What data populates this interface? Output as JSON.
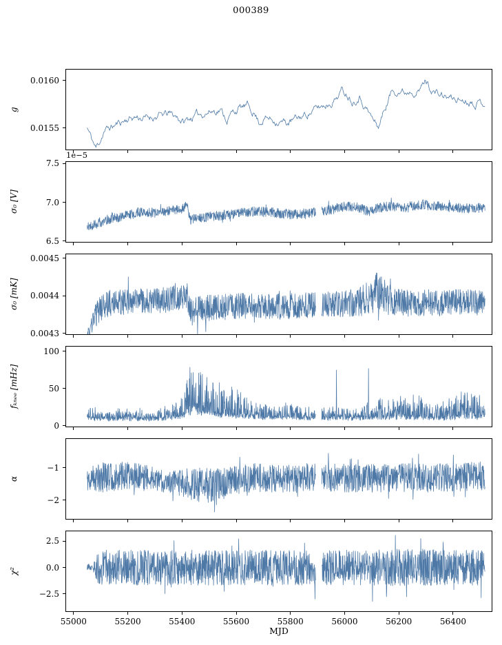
{
  "chart_data": {
    "type": "line",
    "title": "000389",
    "xlabel": "MJD",
    "line_color": "#4e79a7",
    "axis_color": "#000000",
    "grid": false,
    "legend": "none",
    "xlim": [
      54970,
      56545
    ],
    "data_range": [
      55048,
      56520
    ],
    "xticks": [
      {
        "v": 55000,
        "label": "55000"
      },
      {
        "v": 55200,
        "label": "55200"
      },
      {
        "v": 55400,
        "label": "55400"
      },
      {
        "v": 55600,
        "label": "55600"
      },
      {
        "v": 55800,
        "label": "55800"
      },
      {
        "v": 56000,
        "label": "56000"
      },
      {
        "v": 56200,
        "label": "56200"
      },
      {
        "v": 56400,
        "label": "56400"
      }
    ],
    "panels": [
      {
        "id": "g",
        "ylabel": "g",
        "offset_text": null,
        "ylim": [
          0.015268,
          0.016123
        ],
        "yticks": [
          {
            "v": 0.0155,
            "label": "0.0155"
          },
          {
            "v": 0.016,
            "label": "0.0160"
          }
        ],
        "noise": "smooth",
        "points": 550,
        "seed": 11,
        "gaps": [],
        "ctrl": {
          "x": [
            55048,
            55065,
            55080,
            55095,
            55110,
            55140,
            55170,
            55200,
            55230,
            55260,
            55290,
            55320,
            55350,
            55380,
            55405,
            55425,
            55450,
            55480,
            55510,
            55540,
            55565,
            55585,
            55610,
            55640,
            55665,
            55685,
            55705,
            55730,
            55760,
            55790,
            55820,
            55850,
            55880,
            55910,
            55940,
            55965,
            55990,
            56010,
            56030,
            56055,
            56080,
            56105,
            56125,
            56150,
            56175,
            56200,
            56225,
            56250,
            56275,
            56300,
            56320,
            56345,
            56375,
            56405,
            56435,
            56465,
            56495,
            56520
          ],
          "mean": [
            0.0155,
            0.01538,
            0.01528,
            0.01536,
            0.01547,
            0.01551,
            0.01556,
            0.0156,
            0.01562,
            0.0156,
            0.01562,
            0.01563,
            0.01565,
            0.01562,
            0.01556,
            0.0156,
            0.01563,
            0.01566,
            0.01568,
            0.0157,
            0.01559,
            0.01566,
            0.01571,
            0.01573,
            0.01567,
            0.01556,
            0.01561,
            0.01559,
            0.01557,
            0.01555,
            0.01559,
            0.01563,
            0.01568,
            0.01572,
            0.01576,
            0.01581,
            0.0159,
            0.01587,
            0.01579,
            0.01585,
            0.01572,
            0.01559,
            0.01551,
            0.01571,
            0.01589,
            0.01591,
            0.01588,
            0.01592,
            0.01589,
            0.01601,
            0.01592,
            0.01586,
            0.01583,
            0.01581,
            0.0158,
            0.01579,
            0.01578,
            0.01577
          ],
          "amp": 2.5e-05
        }
      },
      {
        "id": "sigma0-v",
        "ylabel": "σ₀ [V]",
        "offset_text": "1e−5",
        "ylim": [
          6.48,
          7.53
        ],
        "yticks": [
          {
            "v": 6.5,
            "label": "6.5"
          },
          {
            "v": 7.0,
            "label": "7.0"
          },
          {
            "v": 7.5,
            "label": "7.5"
          }
        ],
        "noise": "band",
        "points": 1500,
        "seed": 22,
        "gaps": [
          [
            55894,
            55916
          ]
        ],
        "ctrl": {
          "x": [
            55048,
            55090,
            55130,
            55170,
            55210,
            55250,
            55290,
            55330,
            55370,
            55400,
            55418,
            55428,
            55470,
            55520,
            55570,
            55620,
            55670,
            55720,
            55770,
            55820,
            55870,
            55920,
            55970,
            56010,
            56050,
            56090,
            56130,
            56170,
            56210,
            56250,
            56290,
            56330,
            56370,
            56410,
            56450,
            56490,
            56520
          ],
          "mean": [
            6.68,
            6.73,
            6.78,
            6.81,
            6.84,
            6.88,
            6.86,
            6.87,
            6.9,
            6.92,
            6.96,
            6.77,
            6.8,
            6.82,
            6.84,
            6.86,
            6.88,
            6.87,
            6.85,
            6.84,
            6.86,
            6.88,
            6.92,
            6.95,
            6.93,
            6.88,
            6.93,
            6.95,
            6.92,
            6.95,
            6.97,
            6.95,
            6.94,
            6.93,
            6.92,
            6.93,
            6.92
          ],
          "amp": 0.065
        }
      },
      {
        "id": "sigma0-mk",
        "ylabel": "σ₀ [mK]",
        "offset_text": null,
        "ylim": [
          0.004296,
          0.004512
        ],
        "yticks": [
          {
            "v": 0.0043,
            "label": "0.0043"
          },
          {
            "v": 0.0044,
            "label": "0.0044"
          },
          {
            "v": 0.0045,
            "label": "0.0045"
          }
        ],
        "noise": "band",
        "points": 1500,
        "seed": 33,
        "gaps": [
          [
            55894,
            55916
          ]
        ],
        "ctrl": {
          "x": [
            55048,
            55060,
            55075,
            55095,
            55130,
            55170,
            55210,
            55250,
            55290,
            55330,
            55370,
            55400,
            55418,
            55428,
            55470,
            55520,
            55570,
            55620,
            55670,
            55720,
            55770,
            55820,
            55870,
            55920,
            55970,
            56020,
            56060,
            56095,
            56120,
            56140,
            56165,
            56200,
            56250,
            56300,
            56350,
            56400,
            56450,
            56500,
            56520
          ],
          "mean": [
            0.004285,
            0.00431,
            0.00434,
            0.004365,
            0.00438,
            0.004383,
            0.004385,
            0.004388,
            0.004384,
            0.004388,
            0.004392,
            0.004396,
            0.0044,
            0.004362,
            0.004366,
            0.004368,
            0.00437,
            0.004372,
            0.004374,
            0.004372,
            0.00437,
            0.004372,
            0.004374,
            0.004376,
            0.004378,
            0.00438,
            0.004384,
            0.004395,
            0.004408,
            0.004402,
            0.00439,
            0.00438,
            0.00438,
            0.004382,
            0.00438,
            0.004384,
            0.004382,
            0.00438,
            0.00438
          ],
          "amp": [
            2e-05,
            2.5e-05,
            3e-05,
            3.5e-05,
            3.5e-05,
            3.5e-05,
            3.5e-05,
            3.5e-05,
            3.5e-05,
            3.5e-05,
            3.5e-05,
            3.5e-05,
            3.5e-05,
            3.5e-05,
            3.5e-05,
            3.5e-05,
            3.5e-05,
            3.5e-05,
            3.5e-05,
            3.5e-05,
            3.5e-05,
            3.5e-05,
            3.5e-05,
            3.5e-05,
            3.5e-05,
            3.8e-05,
            4e-05,
            4.8e-05,
            5.5e-05,
            5e-05,
            4.2e-05,
            3.8e-05,
            3.6e-05,
            3.6e-05,
            3.5e-05,
            3.5e-05,
            3.5e-05,
            3.5e-05,
            3.5e-05
          ]
        }
      },
      {
        "id": "fknee",
        "ylabel": "fₖₙₑₑ [mHz]",
        "offset_text": null,
        "ylim": [
          -2,
          107
        ],
        "yticks": [
          {
            "v": 0,
            "label": "0"
          },
          {
            "v": 50,
            "label": "50"
          },
          {
            "v": 100,
            "label": "100"
          }
        ],
        "noise": "spiky",
        "points": 1600,
        "seed": 44,
        "gaps": [
          [
            55894,
            55916
          ]
        ],
        "spikes": [
          [
            55970,
            75
          ],
          [
            56089,
            77
          ]
        ],
        "ctrl": {
          "x": [
            55048,
            55090,
            55140,
            55190,
            55240,
            55290,
            55330,
            55370,
            55400,
            55415,
            55430,
            55445,
            55465,
            55490,
            55515,
            55540,
            55565,
            55590,
            55620,
            55650,
            55690,
            55730,
            55770,
            55810,
            55850,
            55890,
            55930,
            55970,
            56010,
            56050,
            56090,
            56130,
            56170,
            56210,
            56250,
            56290,
            56330,
            56370,
            56410,
            56450,
            56490,
            56520
          ],
          "mean": [
            9,
            8,
            8,
            8,
            8,
            8,
            9,
            10,
            12,
            14,
            16,
            17,
            16,
            15,
            14,
            13,
            13,
            12,
            12,
            11,
            10,
            10,
            10,
            10,
            9,
            9,
            9,
            9,
            9,
            9,
            10,
            10,
            10,
            10,
            10,
            10,
            9,
            9,
            10,
            10,
            10,
            10
          ],
          "amp": [
            16,
            13,
            12,
            12,
            13,
            10,
            14,
            20,
            30,
            55,
            70,
            75,
            65,
            55,
            48,
            42,
            45,
            38,
            32,
            27,
            22,
            18,
            20,
            22,
            16,
            15,
            15,
            16,
            15,
            15,
            22,
            26,
            24,
            28,
            33,
            28,
            24,
            22,
            32,
            38,
            30,
            25
          ]
        }
      },
      {
        "id": "alpha",
        "ylabel": "α",
        "offset_text": null,
        "ylim": [
          -2.6,
          -0.09
        ],
        "yticks": [
          {
            "v": -2,
            "label": "−2"
          },
          {
            "v": -1,
            "label": "−1"
          }
        ],
        "noise": "band",
        "points": 1500,
        "seed": 55,
        "gaps": [
          [
            55894,
            55916
          ]
        ],
        "ctrl": {
          "x": [
            55048,
            55100,
            55150,
            55200,
            55250,
            55300,
            55340,
            55380,
            55420,
            55460,
            55500,
            55540,
            55580,
            55620,
            55670,
            55720,
            55770,
            55820,
            55870,
            55920,
            55970,
            56020,
            56070,
            56120,
            56170,
            56220,
            56270,
            56320,
            56370,
            56420,
            56470,
            56520
          ],
          "mean": [
            -1.3,
            -1.3,
            -1.28,
            -1.25,
            -1.3,
            -1.35,
            -1.42,
            -1.45,
            -1.5,
            -1.55,
            -1.55,
            -1.5,
            -1.4,
            -1.35,
            -1.3,
            -1.32,
            -1.35,
            -1.33,
            -1.3,
            -1.3,
            -1.3,
            -1.32,
            -1.35,
            -1.33,
            -1.3,
            -1.3,
            -1.3,
            -1.32,
            -1.3,
            -1.28,
            -1.26,
            -1.25
          ],
          "amp": [
            0.45,
            0.48,
            0.45,
            0.45,
            0.42,
            0.38,
            0.35,
            0.4,
            0.5,
            0.55,
            0.55,
            0.52,
            0.48,
            0.45,
            0.45,
            0.45,
            0.45,
            0.45,
            0.45,
            0.45,
            0.45,
            0.45,
            0.45,
            0.45,
            0.45,
            0.45,
            0.45,
            0.45,
            0.45,
            0.45,
            0.45,
            0.45
          ]
        }
      },
      {
        "id": "chi2",
        "ylabel": "χ²",
        "offset_text": null,
        "ylim": [
          -4.2,
          3.5
        ],
        "yticks": [
          {
            "v": -2.5,
            "label": "−2.5"
          },
          {
            "v": 0,
            "label": "0.0"
          },
          {
            "v": 2.5,
            "label": "2.5"
          }
        ],
        "noise": "band",
        "points": 1600,
        "seed": 66,
        "gaps": [
          [
            55894,
            55916
          ]
        ],
        "ctrl": {
          "x": [
            55048,
            55070,
            55085,
            55110,
            55200,
            55300,
            55400,
            55500,
            55600,
            55700,
            55800,
            55900,
            56000,
            56100,
            56200,
            56300,
            56400,
            56500,
            56520
          ],
          "mean": [
            0.1,
            0,
            0,
            0,
            0,
            0,
            0,
            0,
            0,
            0,
            0,
            0,
            0,
            0,
            0,
            0,
            0,
            0,
            0
          ],
          "amp": [
            0.25,
            0.35,
            1.5,
            1.7,
            1.7,
            1.7,
            1.7,
            1.7,
            1.7,
            1.7,
            1.7,
            1.7,
            1.7,
            1.7,
            1.8,
            1.8,
            1.7,
            1.7,
            1.6
          ]
        }
      }
    ]
  }
}
